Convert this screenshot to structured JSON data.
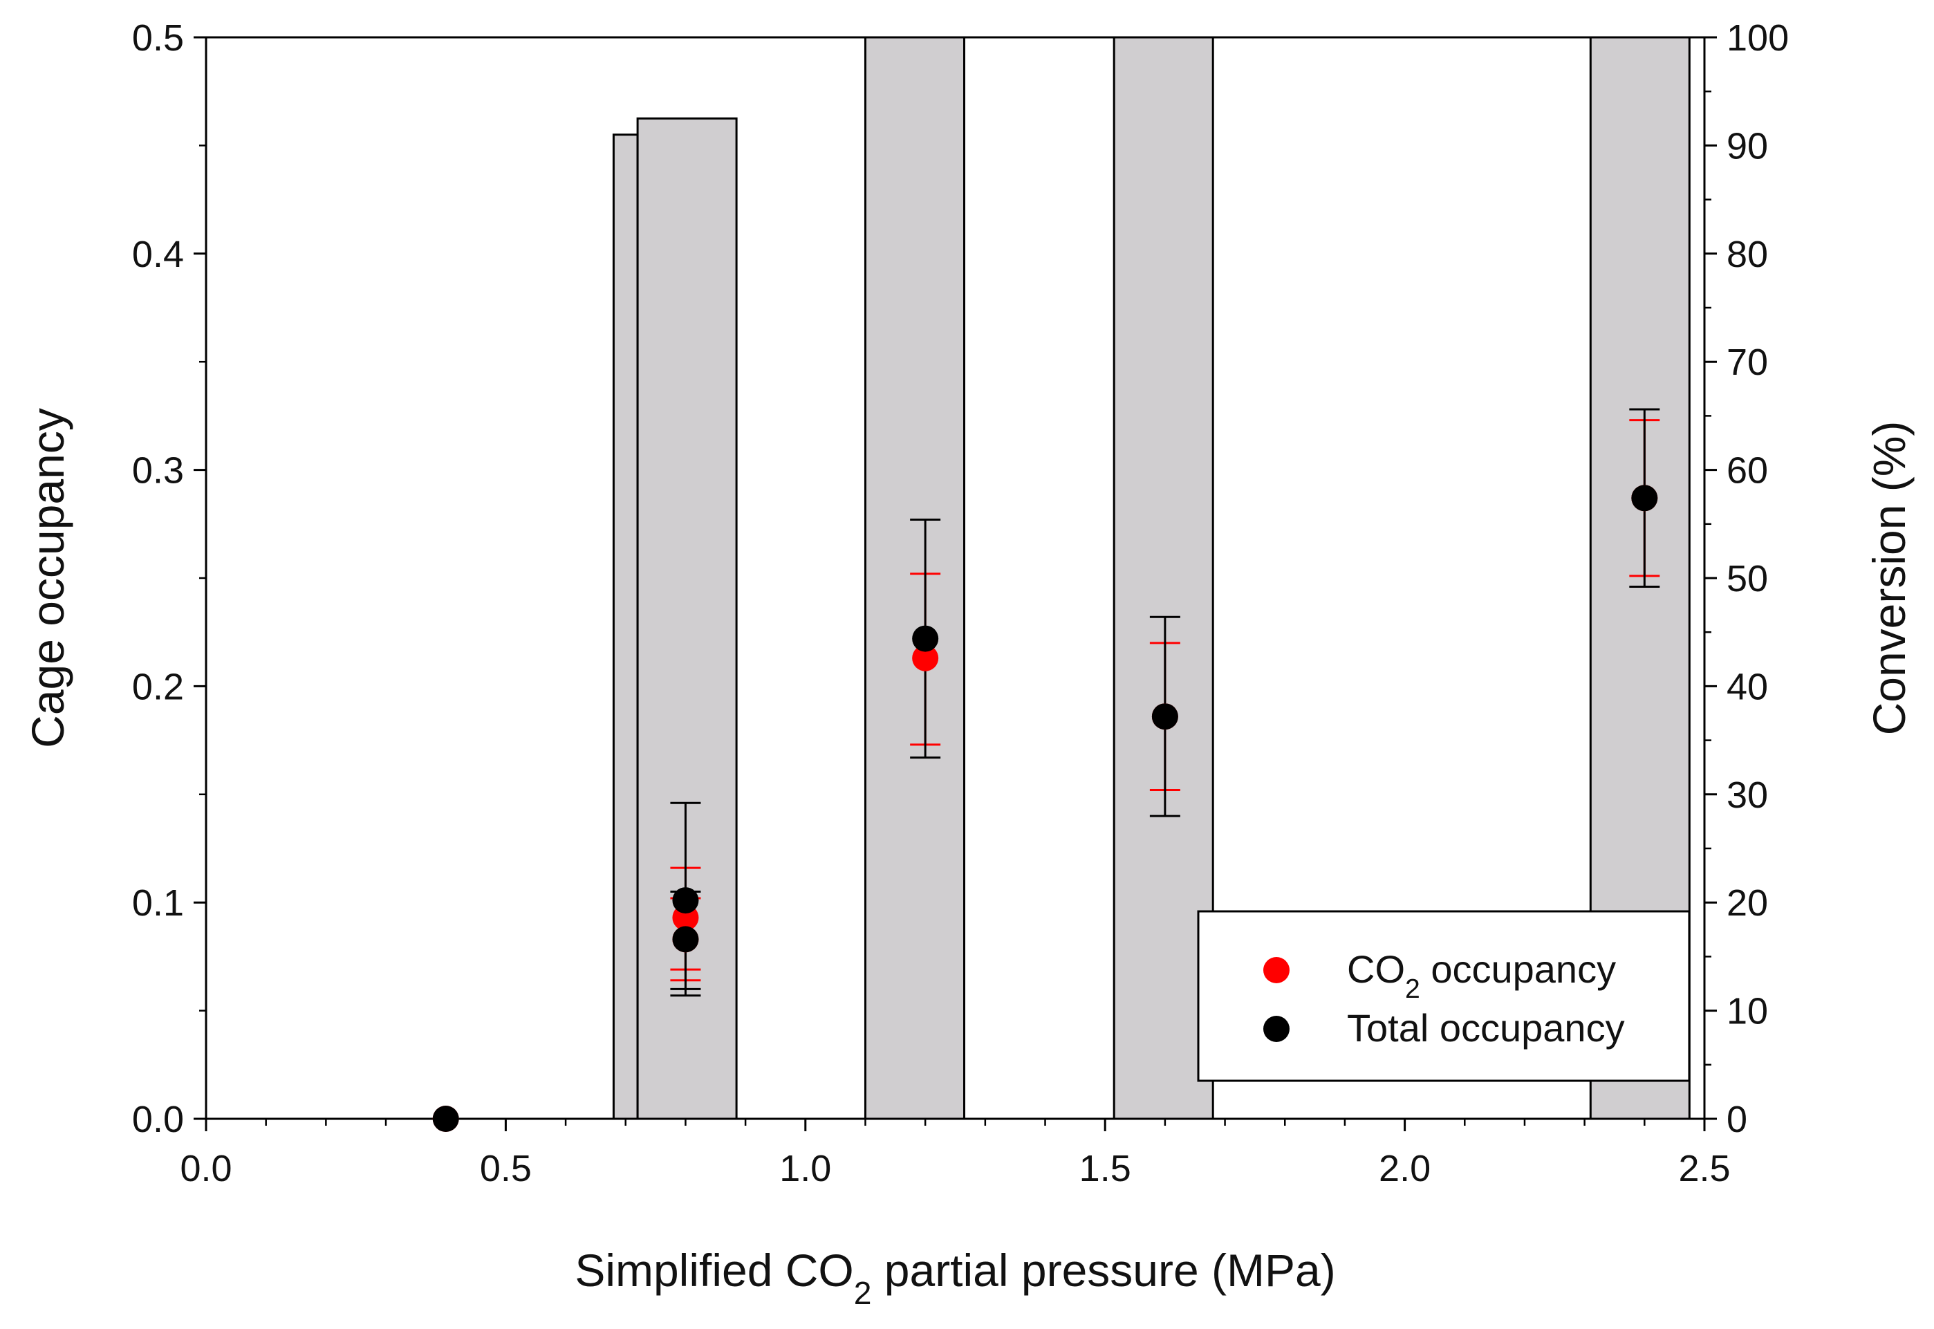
{
  "chart_data": {
    "type": "scatter",
    "title": "",
    "xlabel": {
      "main": "Simplified CO",
      "sub": "2",
      "rest": " partial pressure (MPa)"
    },
    "ylabel_left": "Cage occupancy",
    "ylabel_right": "Conversion (%)",
    "xlim": [
      0.0,
      2.5
    ],
    "ylim_left": [
      0.0,
      0.5
    ],
    "ylim_right": [
      0,
      100
    ],
    "x_ticks": [
      "0.0",
      "0.5",
      "1.0",
      "1.5",
      "2.0",
      "2.5"
    ],
    "y_left_ticks": [
      "0.0",
      "0.1",
      "0.2",
      "0.3",
      "0.4",
      "0.5"
    ],
    "y_right_ticks": [
      "0",
      "10",
      "20",
      "30",
      "40",
      "50",
      "60",
      "70",
      "80",
      "90",
      "100"
    ],
    "grid": false,
    "legend_position": "bottom-right",
    "conversion_bars": {
      "axis": "right",
      "fill": "#d0ced0",
      "bars": [
        {
          "x_start": 0.68,
          "x_end": 0.72,
          "value": 91
        },
        {
          "x_start": 0.72,
          "x_end": 0.885,
          "value": 92.5
        },
        {
          "x_start": 1.1,
          "x_end": 1.265,
          "value": 100
        },
        {
          "x_start": 1.515,
          "x_end": 1.68,
          "value": 100
        },
        {
          "x_start": 2.31,
          "x_end": 2.475,
          "value": 100
        }
      ]
    },
    "series": [
      {
        "name": {
          "main": "CO",
          "sub": "2",
          "rest": " occupancy"
        },
        "color": "#ff0000",
        "points": [
          {
            "x": 0.4,
            "y": 0.0,
            "err_low": 0.0,
            "err_high": 0.0
          },
          {
            "x": 0.8,
            "y": 0.093,
            "err_low": 0.069,
            "err_high": 0.116
          },
          {
            "x": 0.8,
            "y": 0.083,
            "err_low": 0.064,
            "err_high": 0.102
          },
          {
            "x": 1.2,
            "y": 0.213,
            "err_low": 0.173,
            "err_high": 0.252
          },
          {
            "x": 1.6,
            "y": 0.186,
            "err_low": 0.152,
            "err_high": 0.22
          },
          {
            "x": 2.4,
            "y": 0.287,
            "err_low": 0.251,
            "err_high": 0.323
          }
        ]
      },
      {
        "name": {
          "main": "Total occupancy",
          "sub": "",
          "rest": ""
        },
        "color": "#000000",
        "points": [
          {
            "x": 0.4,
            "y": 0.0,
            "err_low": 0.0,
            "err_high": 0.0
          },
          {
            "x": 0.8,
            "y": 0.101,
            "err_low": 0.057,
            "err_high": 0.146
          },
          {
            "x": 0.8,
            "y": 0.083,
            "err_low": 0.06,
            "err_high": 0.105
          },
          {
            "x": 1.2,
            "y": 0.222,
            "err_low": 0.167,
            "err_high": 0.277
          },
          {
            "x": 1.6,
            "y": 0.186,
            "err_low": 0.14,
            "err_high": 0.232
          },
          {
            "x": 2.4,
            "y": 0.287,
            "err_low": 0.246,
            "err_high": 0.328
          }
        ]
      }
    ]
  }
}
